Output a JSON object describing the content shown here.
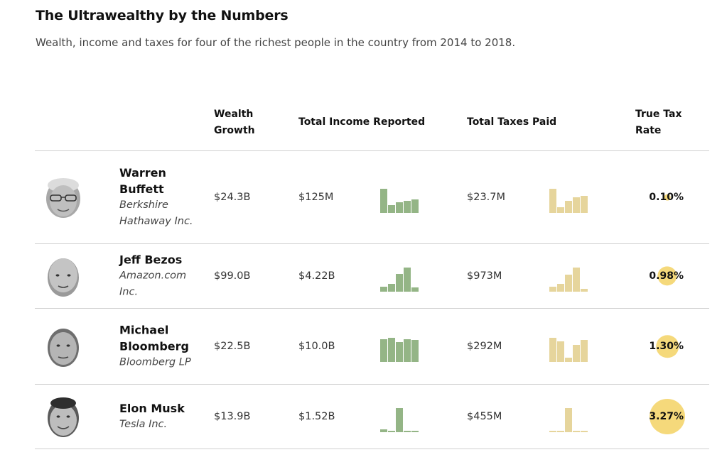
{
  "header": {
    "title": "The Ultrawealthy by the Numbers",
    "subtitle": "Wealth, income and taxes for four of the richest people in the country from 2014 to 2018."
  },
  "columns": {
    "wealth": "Wealth Growth",
    "income": "Total Income Reported",
    "taxes": "Total Taxes Paid",
    "rate": "True Tax Rate"
  },
  "colors": {
    "income_bars": "#94b586",
    "taxes_bars": "#e6d59c",
    "rate_bubble": "#f5d97b"
  },
  "rows": [
    {
      "name": "Warren Buffett",
      "company": "Berkshire Hathaway Inc.",
      "wealth_growth": "$24.3B",
      "total_income": "$125M",
      "total_taxes": "$23.7M",
      "true_tax_rate": "0.10%",
      "rate_value": 0.1,
      "income_bars": [
        1.0,
        0.32,
        0.45,
        0.5,
        0.55
      ],
      "taxes_bars": [
        1.0,
        0.25,
        0.5,
        0.65,
        0.7
      ]
    },
    {
      "name": "Jeff Bezos",
      "company": "Amazon.com Inc.",
      "wealth_growth": "$99.0B",
      "total_income": "$4.22B",
      "total_taxes": "$973M",
      "true_tax_rate": "0.98%",
      "rate_value": 0.98,
      "income_bars": [
        0.2,
        0.32,
        0.75,
        1.0,
        0.17
      ],
      "taxes_bars": [
        0.2,
        0.32,
        0.72,
        1.0,
        0.12
      ]
    },
    {
      "name": "Michael Bloomberg",
      "company": "Bloomberg LP",
      "wealth_growth": "$22.5B",
      "total_income": "$10.0B",
      "total_taxes": "$292M",
      "true_tax_rate": "1.30%",
      "rate_value": 1.3,
      "income_bars": [
        0.95,
        1.0,
        0.82,
        0.95,
        0.92
      ],
      "taxes_bars": [
        1.0,
        0.85,
        0.18,
        0.7,
        0.92
      ]
    },
    {
      "name": "Elon Musk",
      "company": "Tesla Inc.",
      "wealth_growth": "$13.9B",
      "total_income": "$1.52B",
      "total_taxes": "$455M",
      "true_tax_rate": "3.27%",
      "rate_value": 3.27,
      "income_bars": [
        0.12,
        0.04,
        1.0,
        0.04,
        0.04
      ],
      "taxes_bars": [
        0.04,
        0.04,
        1.0,
        0.04,
        0.04
      ]
    }
  ]
}
